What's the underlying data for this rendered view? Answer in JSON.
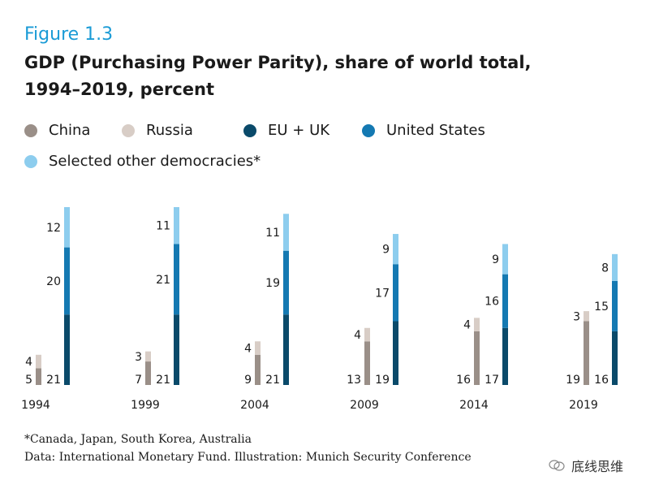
{
  "figure_label": "Figure 1.3",
  "chart_data": {
    "type": "bar",
    "subtype": "grouped-stacked",
    "title": "GDP (Purchasing Power Parity), share of world total,",
    "subtitle": "1994–2019, percent",
    "years": [
      "1994",
      "1999",
      "2004",
      "2009",
      "2014",
      "2019"
    ],
    "legend": [
      {
        "key": "china",
        "label": "China",
        "color": "#9a8f88"
      },
      {
        "key": "russia",
        "label": "Russia",
        "color": "#d8cdc6"
      },
      {
        "key": "eu_uk",
        "label": "EU + UK",
        "color": "#0a4a6a"
      },
      {
        "key": "us",
        "label": "United States",
        "color": "#1479b2"
      },
      {
        "key": "other_dem",
        "label": "Selected other democracies*",
        "color": "#8dcdee"
      }
    ],
    "groups": [
      {
        "year": "1994",
        "china": 5,
        "russia": 4,
        "eu_uk": 21,
        "us": 20,
        "other_dem": 12
      },
      {
        "year": "1999",
        "china": 7,
        "russia": 3,
        "eu_uk": 21,
        "us": 21,
        "other_dem": 11
      },
      {
        "year": "2004",
        "china": 9,
        "russia": 4,
        "eu_uk": 21,
        "us": 19,
        "other_dem": 11
      },
      {
        "year": "2009",
        "china": 13,
        "russia": 4,
        "eu_uk": 19,
        "us": 17,
        "other_dem": 9
      },
      {
        "year": "2014",
        "china": 16,
        "russia": 4,
        "eu_uk": 17,
        "us": 16,
        "other_dem": 9
      },
      {
        "year": "2019",
        "china": 19,
        "russia": 3,
        "eu_uk": 16,
        "us": 15,
        "other_dem": 8
      }
    ],
    "ylim": [
      0,
      53
    ],
    "xlabel": "",
    "ylabel": ""
  },
  "footnote": "*Canada, Japan, South Korea, Australia",
  "source": "Data: International Monetary Fund. Illustration: Munich Security Conference",
  "watermark": "底线思维"
}
